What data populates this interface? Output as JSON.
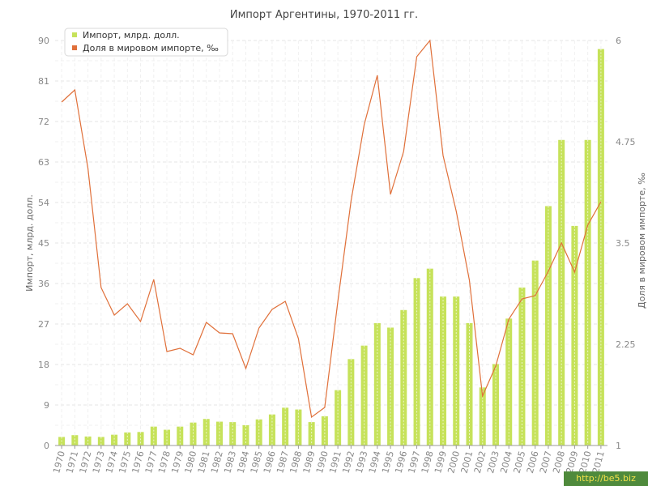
{
  "chart_data": {
    "type": "bar+line",
    "title": "Импорт Аргентины, 1970-2011 гг.",
    "ylabel": "Импорт, млрд. долл.",
    "y2label": "Доля в мировом импорте, ‰",
    "ylim": [
      0,
      90
    ],
    "y2lim": [
      1,
      6
    ],
    "yticks": [
      "0",
      "9",
      "18",
      "27",
      "36",
      "45",
      "54",
      "63",
      "72",
      "81",
      "90"
    ],
    "y2ticks": [
      {
        "value": 1,
        "label": "1"
      },
      {
        "value": 2.25,
        "label": "2.25"
      },
      {
        "value": 3.5,
        "label": "3.5"
      },
      {
        "value": 4.75,
        "label": "4.75"
      },
      {
        "value": 6,
        "label": "6"
      }
    ],
    "categories": [
      "1970",
      "1971",
      "1972",
      "1973",
      "1974",
      "1975",
      "1976",
      "1977",
      "1978",
      "1979",
      "1980",
      "1981",
      "1982",
      "1983",
      "1984",
      "1985",
      "1986",
      "1987",
      "1988",
      "1989",
      "1990",
      "1991",
      "1992",
      "1993",
      "1994",
      "1995",
      "1996",
      "1997",
      "1998",
      "1999",
      "2000",
      "2001",
      "2002",
      "2003",
      "2004",
      "2005",
      "2006",
      "2007",
      "2008",
      "2009",
      "2010",
      "2011"
    ],
    "legend_position": "top-left",
    "grid": true,
    "series": [
      {
        "name": "Импорт, млрд. долл.",
        "kind": "bar",
        "axis": "left",
        "color": "#c6e25a",
        "values": [
          1.9,
          2.3,
          2.0,
          1.9,
          2.4,
          2.9,
          3.0,
          4.2,
          3.5,
          4.2,
          5.1,
          5.9,
          5.3,
          5.2,
          4.5,
          5.8,
          6.9,
          8.4,
          8.0,
          5.2,
          6.5,
          12.3,
          19.2,
          22.2,
          27.2,
          26.2,
          30.1,
          37.2,
          39.3,
          33.1,
          33.1,
          27.2,
          12.9,
          18.1,
          28.2,
          35.1,
          41.1,
          53.2,
          67.9,
          48.8,
          67.9,
          88.1
        ]
      },
      {
        "name": "Доля в мировом импорте, ‰",
        "kind": "line",
        "axis": "right",
        "color": "#e0703a",
        "values": [
          5.24,
          5.39,
          4.42,
          2.95,
          2.61,
          2.75,
          2.53,
          3.05,
          2.16,
          2.2,
          2.12,
          2.52,
          2.39,
          2.38,
          1.95,
          2.45,
          2.68,
          2.78,
          2.32,
          1.35,
          1.47,
          2.78,
          4.02,
          4.96,
          5.57,
          4.1,
          4.63,
          5.8,
          6.0,
          4.58,
          3.89,
          3.04,
          1.61,
          1.98,
          2.56,
          2.81,
          2.85,
          3.15,
          3.5,
          3.14,
          3.72,
          4.01
        ]
      }
    ]
  },
  "watermark": {
    "text": "http://be5.biz"
  }
}
